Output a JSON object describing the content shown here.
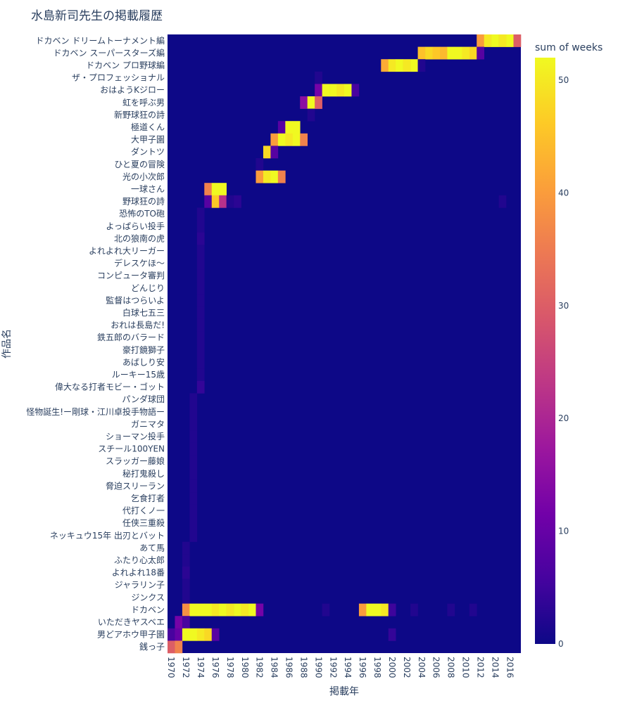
{
  "chart_data": {
    "type": "heatmap",
    "title": "水島新司先生の掲載履歴",
    "xlabel": "掲載年",
    "ylabel": "作品名",
    "colorbar_title": "sum of weeks",
    "colorbar_ticks": [
      0,
      10,
      20,
      30,
      40,
      50
    ],
    "zlim": [
      0,
      52
    ],
    "colorscale": [
      "#0d0887",
      "#46039f",
      "#7201a8",
      "#9c179e",
      "#bd3786",
      "#d8576b",
      "#ed7953",
      "#fb9f3a",
      "#fdca26",
      "#f0f921"
    ],
    "x_range": [
      1970,
      2017
    ],
    "x_ticks": [
      1970,
      1972,
      1974,
      1976,
      1978,
      1980,
      1982,
      1984,
      1986,
      1988,
      1990,
      1992,
      1994,
      1996,
      1998,
      2000,
      2002,
      2004,
      2006,
      2008,
      2010,
      2012,
      2014,
      2016
    ],
    "rows": [
      {
        "name": "ドカベン ドリームトーナメント編",
        "cells": [
          [
            2012,
            40
          ],
          [
            2013,
            50
          ],
          [
            2014,
            52
          ],
          [
            2015,
            50
          ],
          [
            2016,
            52
          ],
          [
            2017,
            30
          ]
        ]
      },
      {
        "name": "ドカベン スーパースターズ編",
        "cells": [
          [
            2004,
            45
          ],
          [
            2005,
            48
          ],
          [
            2006,
            46
          ],
          [
            2007,
            44
          ],
          [
            2008,
            52
          ],
          [
            2009,
            52
          ],
          [
            2010,
            50
          ],
          [
            2011,
            48
          ],
          [
            2012,
            8
          ]
        ]
      },
      {
        "name": "ドカベン プロ野球編",
        "cells": [
          [
            1999,
            42
          ],
          [
            2000,
            50
          ],
          [
            2001,
            52
          ],
          [
            2002,
            50
          ],
          [
            2003,
            52
          ],
          [
            2004,
            2
          ]
        ]
      },
      {
        "name": "ザ・プロフェッショナル",
        "cells": [
          [
            1990,
            2
          ]
        ]
      },
      {
        "name": "おはようKジロー",
        "cells": [
          [
            1990,
            12
          ],
          [
            1991,
            52
          ],
          [
            1992,
            52
          ],
          [
            1993,
            50
          ],
          [
            1994,
            52
          ],
          [
            1995,
            6
          ]
        ]
      },
      {
        "name": "虹を呼ぶ男",
        "cells": [
          [
            1988,
            15
          ],
          [
            1989,
            52
          ],
          [
            1990,
            30
          ]
        ]
      },
      {
        "name": "新野球狂の詩",
        "cells": [
          [
            1989,
            2
          ]
        ]
      },
      {
        "name": "極道くん",
        "cells": [
          [
            1985,
            8
          ],
          [
            1986,
            52
          ],
          [
            1987,
            52
          ]
        ]
      },
      {
        "name": "大甲子園",
        "cells": [
          [
            1984,
            40
          ],
          [
            1985,
            52
          ],
          [
            1986,
            50
          ],
          [
            1987,
            52
          ],
          [
            1988,
            36
          ]
        ]
      },
      {
        "name": "ダントツ",
        "cells": [
          [
            1983,
            48
          ],
          [
            1984,
            8
          ]
        ]
      },
      {
        "name": "ひと夏の冒険",
        "cells": [
          [
            1982,
            2
          ]
        ]
      },
      {
        "name": "光の小次郎",
        "cells": [
          [
            1982,
            40
          ],
          [
            1983,
            50
          ],
          [
            1984,
            52
          ],
          [
            1985,
            36
          ]
        ]
      },
      {
        "name": "一球さん",
        "cells": [
          [
            1975,
            36
          ],
          [
            1976,
            52
          ],
          [
            1977,
            52
          ]
        ]
      },
      {
        "name": "野球狂の詩",
        "cells": [
          [
            1975,
            8
          ],
          [
            1976,
            46
          ],
          [
            1977,
            22
          ],
          [
            1978,
            2
          ],
          [
            1979,
            3
          ],
          [
            2015,
            2
          ]
        ]
      },
      {
        "name": "恐怖のTO砲",
        "cells": [
          [
            1974,
            2
          ]
        ]
      },
      {
        "name": "よっぱらい投手",
        "cells": [
          [
            1974,
            2
          ]
        ]
      },
      {
        "name": "北の狼南の虎",
        "cells": [
          [
            1974,
            3
          ]
        ]
      },
      {
        "name": "よれよれ大リーガー",
        "cells": [
          [
            1974,
            2
          ]
        ]
      },
      {
        "name": "デレスケほ〜",
        "cells": [
          [
            1974,
            2
          ]
        ]
      },
      {
        "name": "コンピュータ審判",
        "cells": [
          [
            1974,
            2
          ]
        ]
      },
      {
        "name": "どんじり",
        "cells": [
          [
            1974,
            2
          ]
        ]
      },
      {
        "name": "監督はつらいよ",
        "cells": [
          [
            1974,
            2
          ]
        ]
      },
      {
        "name": "白球七五三",
        "cells": [
          [
            1974,
            2
          ]
        ]
      },
      {
        "name": "おれは長島だ!",
        "cells": [
          [
            1974,
            2
          ]
        ]
      },
      {
        "name": "鉄五郎のバラード",
        "cells": [
          [
            1974,
            2
          ]
        ]
      },
      {
        "name": "豪打鏡獅子",
        "cells": [
          [
            1974,
            2
          ]
        ]
      },
      {
        "name": "あばしり安",
        "cells": [
          [
            1974,
            2
          ]
        ]
      },
      {
        "name": "ルーキー15歳",
        "cells": [
          [
            1974,
            2
          ]
        ]
      },
      {
        "name": "偉大なる打者モビー・ゴット",
        "cells": [
          [
            1974,
            4
          ]
        ]
      },
      {
        "name": "パンダ球団",
        "cells": [
          [
            1973,
            2
          ]
        ]
      },
      {
        "name": "怪物誕生!ー剛球・江川卓投手物語ー",
        "cells": [
          [
            1973,
            2
          ]
        ]
      },
      {
        "name": "ガニマタ",
        "cells": [
          [
            1973,
            2
          ]
        ]
      },
      {
        "name": "ショーマン投手",
        "cells": [
          [
            1973,
            2
          ]
        ]
      },
      {
        "name": "スチール100YEN",
        "cells": [
          [
            1973,
            2
          ]
        ]
      },
      {
        "name": "スラッガー藤娘",
        "cells": [
          [
            1973,
            2
          ]
        ]
      },
      {
        "name": "秘打鬼殺し",
        "cells": [
          [
            1973,
            2
          ]
        ]
      },
      {
        "name": "脅迫スリーラン",
        "cells": [
          [
            1973,
            2
          ]
        ]
      },
      {
        "name": "乞食打者",
        "cells": [
          [
            1973,
            2
          ]
        ]
      },
      {
        "name": "代打くノ一",
        "cells": [
          [
            1973,
            2
          ]
        ]
      },
      {
        "name": "任侠三重殺",
        "cells": [
          [
            1973,
            2
          ]
        ]
      },
      {
        "name": "ネッキュウ15年 出刃とバット",
        "cells": [
          [
            1973,
            2
          ]
        ]
      },
      {
        "name": "あて馬",
        "cells": [
          [
            1972,
            2
          ]
        ]
      },
      {
        "name": "ふたり心太郎",
        "cells": [
          [
            1972,
            2
          ]
        ]
      },
      {
        "name": "よれよれ18番",
        "cells": [
          [
            1972,
            3
          ]
        ]
      },
      {
        "name": "ジャラリン子",
        "cells": [
          [
            1972,
            2
          ]
        ]
      },
      {
        "name": "ジンクス",
        "cells": [
          [
            1972,
            2
          ]
        ]
      },
      {
        "name": "ドカベン",
        "cells": [
          [
            1972,
            38
          ],
          [
            1973,
            52
          ],
          [
            1974,
            52
          ],
          [
            1975,
            52
          ],
          [
            1976,
            50
          ],
          [
            1977,
            52
          ],
          [
            1978,
            50
          ],
          [
            1979,
            52
          ],
          [
            1980,
            50
          ],
          [
            1981,
            52
          ],
          [
            1982,
            12
          ],
          [
            1991,
            2
          ],
          [
            1996,
            40
          ],
          [
            1997,
            52
          ],
          [
            1998,
            52
          ],
          [
            1999,
            50
          ],
          [
            2000,
            5
          ],
          [
            2003,
            2
          ],
          [
            2008,
            2
          ],
          [
            2011,
            2
          ]
        ]
      },
      {
        "name": "いただきヤスベエ",
        "cells": [
          [
            1971,
            12
          ],
          [
            1972,
            6
          ]
        ]
      },
      {
        "name": "男どアホウ甲子園",
        "cells": [
          [
            1970,
            6
          ],
          [
            1971,
            10
          ],
          [
            1972,
            52
          ],
          [
            1973,
            52
          ],
          [
            1974,
            50
          ],
          [
            1975,
            48
          ],
          [
            1976,
            8
          ],
          [
            2000,
            4
          ]
        ]
      },
      {
        "name": "銭っ子",
        "cells": [
          [
            1970,
            30
          ],
          [
            1971,
            36
          ]
        ]
      }
    ]
  }
}
